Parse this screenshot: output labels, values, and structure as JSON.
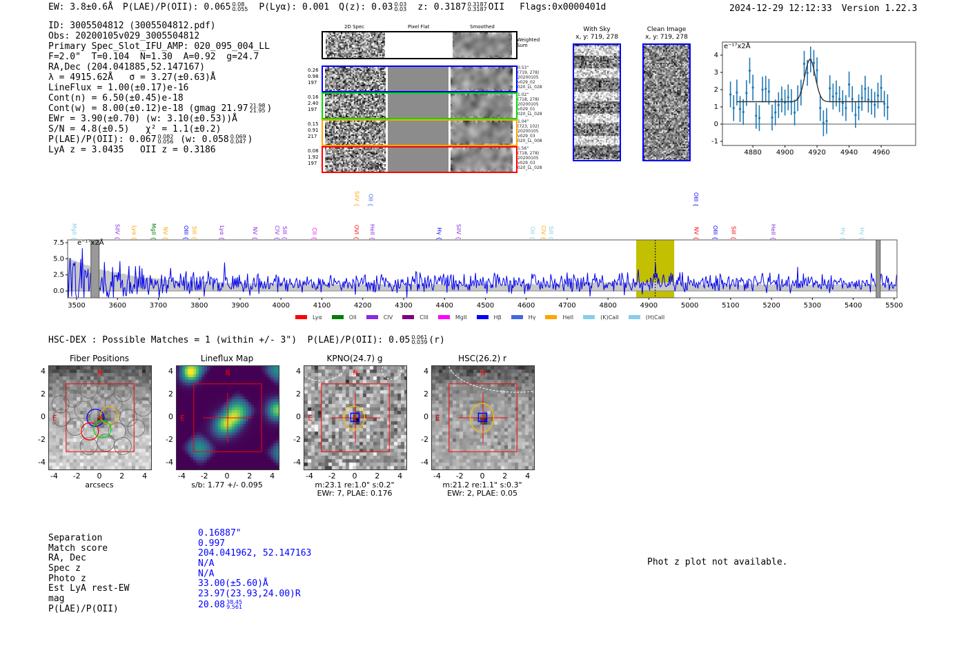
{
  "header": {
    "ew": "EW: 3.8±0.6Å",
    "plae": "P(LAE)/P(OII): 0.065",
    "plae_sup": "0.08",
    "plae_sub": "0.055",
    "plya": "P(Lyα): 0.001",
    "qz": "Q(z): 0.03",
    "qz_sup": "0.03",
    "qz_sub": "0.03",
    "z": "z: 0.3187",
    "z_sup": "0.3187",
    "z_sub": "0.3187",
    "z_line": "OII",
    "flags": "Flags:0x0000401d",
    "datetime": "2024-12-29 12:12:33",
    "version": "Version 1.22.3"
  },
  "info": {
    "id": "ID: 3005504812 (3005504812.pdf)",
    "obs": "Obs: 20200105v029_3005504812",
    "primary": "Primary Spec_Slot_IFU_AMP: 020_095_004_LL",
    "params": "F=2.0\"  T=0.104  N=1.30  A=0.92  g=24.7",
    "radec": "RA,Dec (204.041885,52.147167)",
    "lambda": "λ = 4915.62Å   σ = 3.27(±0.63)Å",
    "lineflux": "LineFlux = 1.00(±0.17)e-16",
    "cont_n": "Cont(n) = 6.50(±0.45)e-18",
    "cont_w": "Cont(w) = 8.00(±0.12)e-18 (gmag 21.97",
    "cont_w_sup": "21.98",
    "cont_w_sub": "21.95",
    "cont_w_tail": ")",
    "ewr": "EWr = 3.90(±0.70) (w: 3.10(±0.53))Å",
    "sn": "S/N = 4.8(±0.5)   χ² = 1.1(±0.2)",
    "plae": "P(LAE)/P(OII): 0.067",
    "plae_sup": "0.082",
    "plae_sub": "0.056",
    "plae_w": " (w: 0.058",
    "plae_w_sup": "0.069",
    "plae_w_sub": "0.047",
    "plae_w_tail": ")",
    "lyaz": "LyA z = 3.0435   OII z = 0.3186"
  },
  "spec2d": {
    "headers": [
      "2D Spec",
      "Pixel Flat",
      "Smoothed"
    ],
    "weighted_label": "Weighted Sum",
    "rows": [
      {
        "color": "#0000ff",
        "left": [
          "0.26",
          "0.98",
          "197"
        ],
        "right": [
          "0.53\"",
          "(719, 278)",
          "20200105",
          "v029_02",
          "020_LL_028"
        ]
      },
      {
        "color": "#00dd00",
        "left": [
          "0.16",
          "2.40",
          "197"
        ],
        "right": [
          "1.02\"",
          "(718, 278)",
          "20200105",
          "v029_01",
          "020_LL_028"
        ]
      },
      {
        "color": "#ffa500",
        "left": [
          "0.15",
          "0.91",
          "217"
        ],
        "right": [
          "1.04\"",
          "(723, 102)",
          "20200105",
          "v029_03",
          "020_LL_008"
        ]
      },
      {
        "color": "#ff0000",
        "left": [
          "0.08",
          "1.92",
          "197"
        ],
        "right": [
          "1.56\"",
          "(718, 278)",
          "20200105",
          "v029_03",
          "020_LL_028"
        ]
      }
    ]
  },
  "with_sky": {
    "title": "With Sky",
    "coords": "x, y: 719, 278"
  },
  "clean_image": {
    "title": "Clean Image",
    "coords": "x, y: 719, 278"
  },
  "chart_data": [
    {
      "type": "scatter",
      "name": "line-zoom-fit",
      "ylabel": "e⁻¹⁷x2Å",
      "xlim": [
        4861,
        4981.5
      ],
      "ylim": [
        -1.24,
        4.76
      ],
      "xticks": [
        4880,
        4900,
        4920,
        4940,
        4960
      ],
      "yticks": [
        -1,
        0,
        1,
        2,
        3,
        4
      ],
      "x": [
        4866,
        4868,
        4870,
        4872,
        4874,
        4876,
        4878,
        4880,
        4882,
        4884,
        4886,
        4888,
        4890,
        4892,
        4894,
        4896,
        4898,
        4900,
        4902,
        4904,
        4906,
        4908,
        4910,
        4912,
        4914,
        4916,
        4918,
        4920,
        4922,
        4924,
        4926,
        4928,
        4930,
        4932,
        4934,
        4936,
        4938,
        4940,
        4942,
        4944,
        4946,
        4948,
        4950,
        4952,
        4954,
        4956,
        4958,
        4960,
        4962,
        4964
      ],
      "y": [
        1.72,
        0.93,
        1.83,
        0.87,
        0.7,
        1.8,
        3.1,
        2.12,
        0.48,
        0.35,
        2.0,
        2.05,
        1.88,
        0.38,
        0.68,
        1.1,
        1.43,
        1.25,
        1.55,
        1.28,
        0.67,
        1.5,
        1.83,
        3.5,
        2.97,
        3.75,
        3.55,
        3.12,
        0.93,
        0.05,
        0.18,
        2.08,
        1.6,
        1.78,
        1.45,
        1.22,
        0.93,
        2.3,
        1.45,
        0.53,
        0.97,
        1.52,
        2.05,
        1.42,
        1.3,
        1.12,
        1.65,
        2.1,
        1.18,
        0.98
      ],
      "yerr": 0.75,
      "fit": {
        "center": 4915.62,
        "sigma": 3.27,
        "continuum": 1.3,
        "amplitude": 2.45,
        "range": [
          4870,
          4962
        ]
      }
    },
    {
      "type": "line",
      "name": "full-spectrum",
      "ylabel": "e⁻¹⁷x2Å",
      "xlim": [
        3478,
        5507
      ],
      "ylim": [
        -1.07,
        7.93
      ],
      "xticks": [
        3500,
        3600,
        3700,
        3800,
        3900,
        4000,
        4100,
        4200,
        4300,
        4400,
        4500,
        4600,
        4700,
        4800,
        4900,
        5000,
        5100,
        5200,
        5300,
        5400,
        5500
      ],
      "yticks": [
        0.0,
        2.5,
        5.0,
        7.5
      ],
      "highlight": [
        4869,
        4962
      ],
      "line_center": 4915.62,
      "masked": [
        [
          3535,
          3555
        ],
        [
          5456,
          5466
        ]
      ],
      "lines": [
        {
          "name": "MgII",
          "wave": 3495,
          "color": "#87ceeb",
          "row": 0
        },
        {
          "name": "SiIV",
          "wave": 3600,
          "color": "#8a2be2",
          "row": 0
        },
        {
          "name": "Lyα",
          "wave": 3642,
          "color": "#ffa500",
          "row": 0
        },
        {
          "name": "MgII",
          "wave": 3689,
          "color": "#008000",
          "row": 0
        },
        {
          "name": "NV",
          "wave": 3718,
          "color": "#ffa500",
          "row": 0
        },
        {
          "name": "OIII",
          "wave": 3768,
          "color": "#0000ff",
          "row": 0
        },
        {
          "name": "SiII",
          "wave": 3789,
          "color": "#ffa500",
          "row": 0
        },
        {
          "name": "Lyα",
          "wave": 3856,
          "color": "#8a2be2",
          "row": 0
        },
        {
          "name": "NV",
          "wave": 3937,
          "color": "#8a2be2",
          "row": 0
        },
        {
          "name": "CIV",
          "wave": 3991,
          "color": "#8a2be2",
          "row": 0
        },
        {
          "name": "SiII",
          "wave": 4010,
          "color": "#8a2be2",
          "row": 0
        },
        {
          "name": "CII",
          "wave": 4082,
          "color": "#ff00ff",
          "row": 0
        },
        {
          "name": "OVI",
          "wave": 4185,
          "color": "#ff0000",
          "row": 0
        },
        {
          "name": "HeII",
          "wave": 4224,
          "color": "#8a2be2",
          "row": 0
        },
        {
          "name": "Hγ",
          "wave": 4388,
          "color": "#0000ff",
          "row": 0
        },
        {
          "name": "SiIV",
          "wave": 4435,
          "color": "#8a2be2",
          "row": 0
        },
        {
          "name": "OII",
          "wave": 4616,
          "color": "#87ceeb",
          "row": 0
        },
        {
          "name": "CIV",
          "wave": 4643,
          "color": "#ffa500",
          "row": 0
        },
        {
          "name": "SiII",
          "wave": 4658,
          "color": "#87ceeb",
          "row": 0
        },
        {
          "name": "NV",
          "wave": 5017,
          "color": "#ff0000",
          "row": 0
        },
        {
          "name": "OIII",
          "wave": 5063,
          "color": "#0000ff",
          "row": 0
        },
        {
          "name": "SiII",
          "wave": 5108,
          "color": "#ff0000",
          "row": 0
        },
        {
          "name": "HeII",
          "wave": 5205,
          "color": "#8a2be2",
          "row": 0
        },
        {
          "name": "Hγ",
          "wave": 5375,
          "color": "#87ceeb",
          "row": 0
        },
        {
          "name": "Hγ",
          "wave": 5422,
          "color": "#87ceeb",
          "row": 0
        },
        {
          "name": "SiIV",
          "wave": 4186,
          "color": "#ffa500",
          "row": 1
        },
        {
          "name": "OII",
          "wave": 4220,
          "color": "#4169e1",
          "row": 1
        },
        {
          "name": "OIII",
          "wave": 5016,
          "color": "#0000ff",
          "row": 1
        }
      ],
      "legend": [
        {
          "label": "Lyα",
          "color": "#ff0000"
        },
        {
          "label": "OII",
          "color": "#008000"
        },
        {
          "label": "CIV",
          "color": "#8a2be2"
        },
        {
          "label": "CIII",
          "color": "#800080"
        },
        {
          "label": "MgII",
          "color": "#ff00ff"
        },
        {
          "label": "Hβ",
          "color": "#0000ff"
        },
        {
          "label": "Hγ",
          "color": "#4169e1"
        },
        {
          "label": "HeII",
          "color": "#ffa500"
        },
        {
          "label": "(K)CaII",
          "color": "#87ceeb"
        },
        {
          "label": "(H)CaII",
          "color": "#87ceeb"
        }
      ],
      "legend_placement": "bottom"
    }
  ],
  "hsc": {
    "title": "HSC-DEX : Possible Matches = 1 (within +/- 3\")  P(LAE)/P(OII): 0.05",
    "sup": "0.061",
    "sub": "0.039",
    "tail": "(r)"
  },
  "cutouts": [
    {
      "title": "Fiber Positions",
      "caption1": "arcsecs",
      "caption2": ""
    },
    {
      "title": "Lineflux Map",
      "caption1": "s/b: 1.77 +/- 0.095",
      "caption2": ""
    },
    {
      "title": "KPNO(24.7) g",
      "caption1": "m:23.1  re:1.0\"  s:0.2\"",
      "caption2": "EWr: 7, PLAE: 0.176"
    },
    {
      "title": "HSC(26.2) r",
      "caption1": "m:21.2  re:1.1\"  s:0.3\"",
      "caption2": "EWr: 2, PLAE: 0.05"
    }
  ],
  "cutout_ticks": [
    "-4",
    "-2",
    "0",
    "2",
    "4"
  ],
  "compass": {
    "north": "N",
    "east": "E"
  },
  "match_table": {
    "labels": [
      "Separation",
      "Match score",
      "RA, Dec",
      "Spec z",
      "Photo z",
      "Est LyA rest-EW",
      "mag",
      "P(LAE)/P(OII)"
    ],
    "values": [
      "0.16887\"",
      "0.997",
      "204.041962, 52.147163",
      "N/A",
      "N/A",
      "33.00(±5.60)Å",
      "23.97(23.93,24.00)R",
      "20.08"
    ],
    "plae_sup": "38.45",
    "plae_sub": "9.561"
  },
  "photz_message": "Phot z plot not available."
}
